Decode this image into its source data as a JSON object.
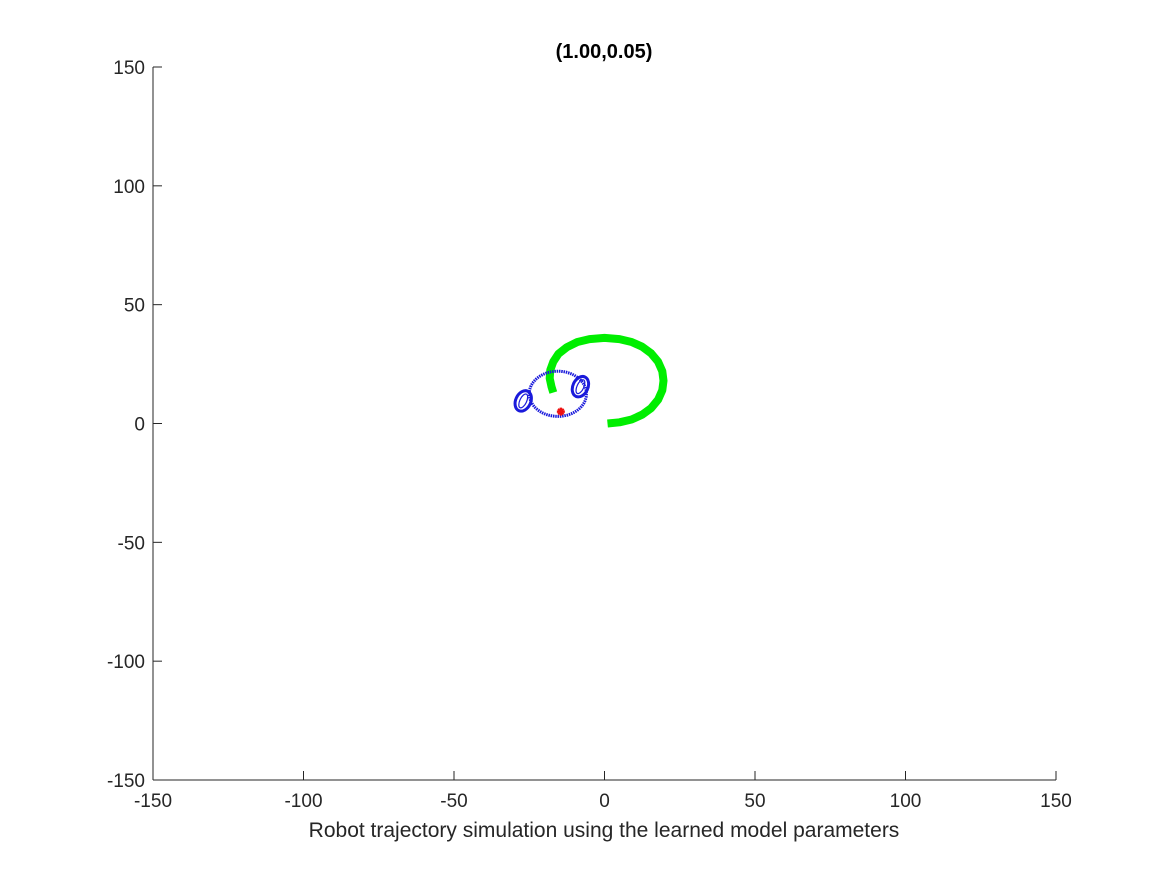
{
  "chart_data": {
    "type": "line",
    "title": "(1.00,0.05)",
    "xlabel": "Robot trajectory simulation using the learned model parameters",
    "ylabel": "",
    "xlim": [
      -150,
      150
    ],
    "ylim": [
      -150,
      150
    ],
    "xticks": [
      -150,
      -100,
      -50,
      0,
      50,
      100,
      150
    ],
    "yticks": [
      -150,
      -100,
      -50,
      0,
      50,
      100,
      150
    ],
    "grid": false,
    "series": [
      {
        "kind": "trajectory",
        "color": "#00ee00",
        "points": [
          [
            1,
            0
          ],
          [
            5,
            0.5
          ],
          [
            9,
            1.7
          ],
          [
            12.5,
            3.7
          ],
          [
            15.5,
            6.5
          ],
          [
            17.8,
            10
          ],
          [
            19.2,
            14
          ],
          [
            19.6,
            18
          ],
          [
            19.2,
            22
          ],
          [
            17.8,
            26
          ],
          [
            15.5,
            29.5
          ],
          [
            12.5,
            32.3
          ],
          [
            9,
            34.3
          ],
          [
            5,
            35.5
          ],
          [
            0,
            36
          ],
          [
            -5,
            35.5
          ],
          [
            -9,
            34.3
          ],
          [
            -12.5,
            32.1
          ],
          [
            -15.3,
            29.3
          ],
          [
            -17,
            26
          ],
          [
            -18,
            22.5
          ],
          [
            -18.2,
            19
          ],
          [
            -17.6,
            15.5
          ],
          [
            -17,
            13
          ]
        ]
      },
      {
        "kind": "robot-body",
        "color": "#1a1adb",
        "center": [
          -15.5,
          12.5
        ],
        "radius": 9.5
      },
      {
        "kind": "wheel",
        "color": "#1a1adb",
        "center": [
          -27,
          9.5
        ],
        "rx": 2.5,
        "ry": 4.5,
        "angle": 25
      },
      {
        "kind": "wheel",
        "color": "#1a1adb",
        "center": [
          -8,
          15.5
        ],
        "rx": 2.5,
        "ry": 4.5,
        "angle": 25
      },
      {
        "kind": "marker",
        "color": "#ee1111",
        "point": [
          -14.5,
          5
        ]
      }
    ]
  }
}
